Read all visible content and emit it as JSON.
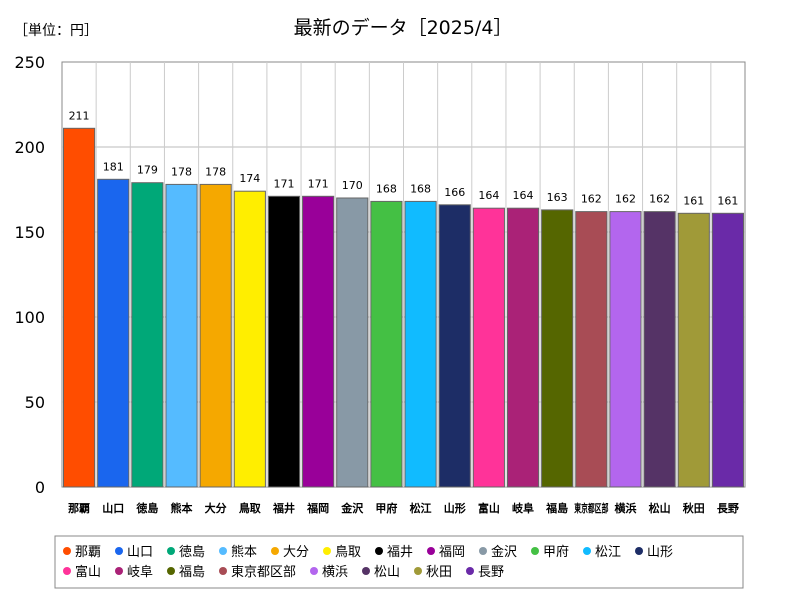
{
  "chart_data": {
    "type": "bar",
    "title": "最新のデータ［2025/4］",
    "unit_label": "［単位：円］",
    "xlabel": "",
    "ylabel": "",
    "ylim": [
      0,
      250
    ],
    "yticks": [
      0,
      50,
      100,
      150,
      200,
      250
    ],
    "grid": true,
    "legend_position": "bottom",
    "categories": [
      "那覇",
      "山口",
      "徳島",
      "熊本",
      "大分",
      "鳥取",
      "福井",
      "福岡",
      "金沢",
      "甲府",
      "松江",
      "山形",
      "富山",
      "岐阜",
      "福島",
      "東京都区部",
      "横浜",
      "松山",
      "秋田",
      "長野"
    ],
    "values": [
      211,
      181,
      179,
      178,
      178,
      174,
      171,
      171,
      170,
      168,
      168,
      166,
      164,
      164,
      163,
      162,
      162,
      162,
      161,
      161
    ],
    "colors": [
      "#ff4d00",
      "#1a66ee",
      "#00a878",
      "#55bbff",
      "#f5a800",
      "#ffee00",
      "#000000",
      "#990099",
      "#8899a6",
      "#44c044",
      "#11bbff",
      "#1d2d66",
      "#ff3399",
      "#aa2277",
      "#556600",
      "#a84c55",
      "#b366ee",
      "#553366",
      "#a09a38",
      "#6a2aa8"
    ]
  }
}
